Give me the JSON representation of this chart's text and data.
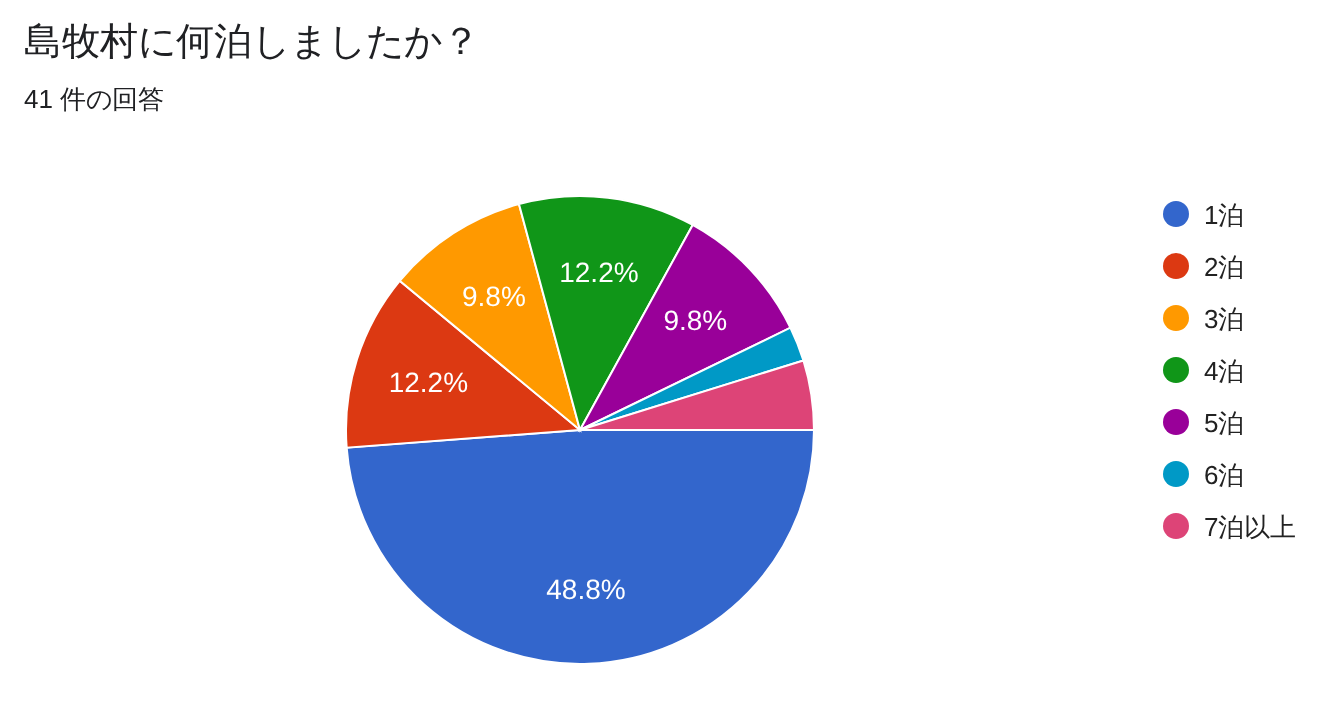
{
  "chart_data": {
    "type": "pie",
    "title": "島牧村に何泊しましたか？",
    "subtitle": "41 件の回答",
    "categories": [
      "1泊",
      "2泊",
      "3泊",
      "4泊",
      "5泊",
      "6泊",
      "7泊以上"
    ],
    "values": [
      48.8,
      12.2,
      9.8,
      12.2,
      9.8,
      2.4,
      4.8
    ],
    "colors": [
      "#3366cc",
      "#dc3912",
      "#ff9900",
      "#109618",
      "#990099",
      "#0099c6",
      "#dd4477"
    ],
    "value_labels": [
      "48.8%",
      "12.2%",
      "9.8%",
      "12.2%",
      "9.8%",
      null,
      null
    ],
    "legend": "right"
  }
}
